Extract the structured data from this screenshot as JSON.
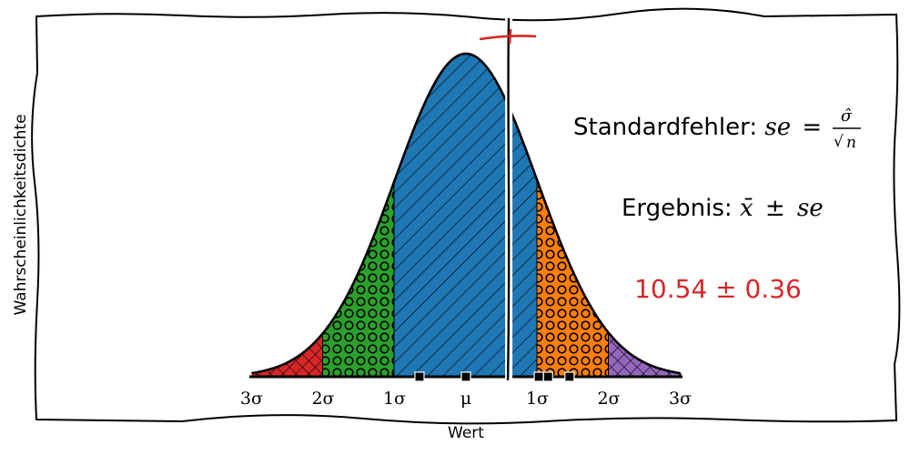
{
  "chart_data": {
    "type": "area",
    "xlabel": "Wert",
    "ylabel": "Wahrscheinlichkeitsdichte",
    "x_ticks": [
      -3,
      -2,
      -1,
      0,
      1,
      2,
      3
    ],
    "tick_labels": [
      "3σ",
      "2σ",
      "1σ",
      "μ",
      "1σ",
      "2σ",
      "3σ"
    ],
    "xlim": [
      -3,
      3
    ],
    "curve": "normal density",
    "regions": [
      {
        "from": -3,
        "to": -2,
        "color": "#d62728",
        "hatch": "crosshatch"
      },
      {
        "from": -2,
        "to": -1,
        "color": "#2ca02c",
        "hatch": "circles"
      },
      {
        "from": -1,
        "to": 1,
        "color": "#1f77b4",
        "hatch": "diagonal"
      },
      {
        "from": 1,
        "to": 2,
        "color": "#ff7f0e",
        "hatch": "circles"
      },
      {
        "from": 2,
        "to": 3,
        "color": "#9467bd",
        "hatch": "crosshatch"
      }
    ],
    "sample_mean_x": 0.6,
    "samples_x": [
      -0.65,
      0,
      1.02,
      1.15,
      1.45
    ],
    "annotations": {
      "standard_error_text": "Standardfehler: ",
      "standard_error_formula": {
        "lhs": "se",
        "equals": "=",
        "numerator": "σ̂",
        "denominator_root": "√",
        "denominator_var": "n"
      },
      "result_text": "Ergebnis: ",
      "result_formula": {
        "mean": "x̄",
        "pm": "±",
        "se": "se"
      },
      "result_value": "10.54 ± 0.36"
    },
    "colors": {
      "mean_line": "#000000",
      "mean_marker": "#d62728"
    }
  }
}
